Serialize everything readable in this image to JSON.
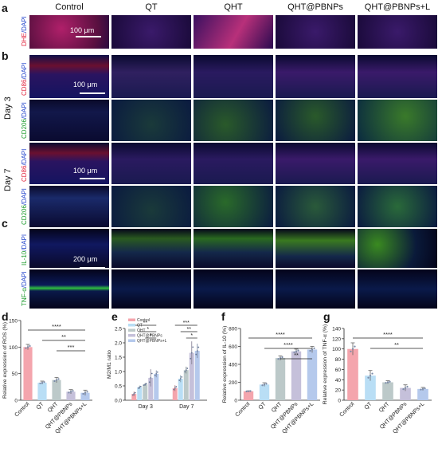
{
  "panels": {
    "a": "a",
    "b": "b",
    "c": "c",
    "d": "d",
    "e": "e",
    "f": "f",
    "g": "g"
  },
  "columns": [
    "Control",
    "QT",
    "QHT",
    "QHT@PBNPs",
    "QHT@PBNPs+L"
  ],
  "rows": [
    {
      "label_parts": [
        "DHE",
        "/DAPI"
      ],
      "colors": [
        "#e0203a",
        "#2244cc"
      ]
    },
    {
      "label_parts": [
        "CD86",
        "/DAPI"
      ],
      "colors": [
        "#e0203a",
        "#2244cc"
      ]
    },
    {
      "label_parts": [
        "CD206",
        "/DAPI"
      ],
      "colors": [
        "#1a9a2a",
        "#2244cc"
      ]
    },
    {
      "label_parts": [
        "CD86",
        "/DAPI"
      ],
      "colors": [
        "#e0203a",
        "#2244cc"
      ]
    },
    {
      "label_parts": [
        "CD206",
        "/DAPI"
      ],
      "colors": [
        "#1a9a2a",
        "#2244cc"
      ]
    },
    {
      "label_parts": [
        "IL-10",
        "/DAPI"
      ],
      "colors": [
        "#1a9a2a",
        "#2244cc"
      ]
    },
    {
      "label_parts": [
        "TNF-α",
        "/DAPI"
      ],
      "colors": [
        "#1a9a2a",
        "#2244cc"
      ]
    }
  ],
  "days": {
    "day3": "Day 3",
    "day7": "Day 7"
  },
  "scalebars": {
    "s1": "100 μm",
    "s2": "100 μm",
    "s3": "100 μm",
    "s4": "200 μm"
  },
  "chart_data": [
    {
      "panel": "d",
      "type": "bar",
      "ylabel": "Relative expression of ROS (%)",
      "categories": [
        "Control",
        "QT",
        "QHT",
        "QHT@PBNPs",
        "QHT@PBNPs+L"
      ],
      "values": [
        100,
        33,
        38,
        16,
        14
      ],
      "errors": [
        5,
        3,
        5,
        4,
        5
      ],
      "colors": [
        "#f4a5ad",
        "#b9def5",
        "#bcc9c9",
        "#c5c0da",
        "#b5c9ec"
      ],
      "ylim": [
        0,
        150
      ],
      "yticks": [
        0,
        50,
        100,
        150
      ],
      "significance": [
        {
          "from": 0,
          "to": 4,
          "label": "****"
        },
        {
          "from": 1,
          "to": 4,
          "label": "**"
        },
        {
          "from": 2,
          "to": 4,
          "label": "***"
        }
      ]
    },
    {
      "panel": "e",
      "type": "bar",
      "ylabel": "M2/M1 ratio",
      "categories": [
        "Day 3",
        "Day 7"
      ],
      "series": [
        {
          "name": "Control",
          "values": [
            0.22,
            0.42
          ],
          "errors": [
            0.08,
            0.1
          ],
          "color": "#f4a5ad"
        },
        {
          "name": "QT",
          "values": [
            0.45,
            0.75
          ],
          "errors": [
            0.06,
            0.12
          ],
          "color": "#b9def5"
        },
        {
          "name": "QHT",
          "values": [
            0.55,
            1.05
          ],
          "errors": [
            0.05,
            0.12
          ],
          "color": "#bcc9c9"
        },
        {
          "name": "QHT@PBNPs",
          "values": [
            0.78,
            1.65
          ],
          "errors": [
            0.3,
            0.4
          ],
          "color": "#c5c0da"
        },
        {
          "name": "QHT@PBNPs+L",
          "values": [
            0.92,
            1.72
          ],
          "errors": [
            0.12,
            0.25
          ],
          "color": "#b5c9ec"
        }
      ],
      "ylim": [
        0,
        2.5
      ],
      "yticks": [
        0.0,
        0.5,
        1.0,
        1.5,
        2.0,
        2.5
      ],
      "significance": [
        {
          "group": 0,
          "from": 0,
          "to": 4,
          "label": "**"
        },
        {
          "group": 0,
          "from": 1,
          "to": 4,
          "label": "*"
        },
        {
          "group": 0,
          "from": 2,
          "to": 4,
          "label": "*"
        },
        {
          "group": 1,
          "from": 0,
          "to": 4,
          "label": "***"
        },
        {
          "group": 1,
          "from": 1,
          "to": 4,
          "label": "**"
        },
        {
          "group": 1,
          "from": 2,
          "to": 4,
          "label": "*"
        }
      ]
    },
    {
      "panel": "f",
      "type": "bar",
      "ylabel": "Relative expression of IL-10 (%)",
      "categories": [
        "Control",
        "QT",
        "QHT",
        "QHT@PBNPs",
        "QHT@PBNPs+L"
      ],
      "values": [
        100,
        175,
        470,
        545,
        565
      ],
      "errors": [
        5,
        20,
        25,
        25,
        35
      ],
      "colors": [
        "#f4a5ad",
        "#b9def5",
        "#bcc9c9",
        "#c5c0da",
        "#b5c9ec"
      ],
      "ylim": [
        0,
        800
      ],
      "yticks": [
        0,
        200,
        400,
        600,
        800
      ],
      "significance": [
        {
          "from": 0,
          "to": 4,
          "label": "****"
        },
        {
          "from": 1,
          "to": 4,
          "label": "****"
        },
        {
          "from": 2,
          "to": 4,
          "label": "**"
        }
      ]
    },
    {
      "panel": "g",
      "type": "bar",
      "ylabel": "Relative expression of TNF-α (%)",
      "categories": [
        "Control",
        "QT",
        "QHT",
        "QHT@PBNPs",
        "QHT@PBNPs+L"
      ],
      "values": [
        100,
        48,
        35,
        24,
        22
      ],
      "errors": [
        12,
        10,
        3,
        6,
        3
      ],
      "colors": [
        "#f4a5ad",
        "#b9def5",
        "#bcc9c9",
        "#c5c0da",
        "#b5c9ec"
      ],
      "ylim": [
        0,
        140
      ],
      "yticks": [
        0,
        20,
        40,
        60,
        80,
        100,
        120,
        140
      ],
      "significance": [
        {
          "from": 0,
          "to": 4,
          "label": "****"
        },
        {
          "from": 1,
          "to": 4,
          "label": "**"
        }
      ]
    }
  ]
}
